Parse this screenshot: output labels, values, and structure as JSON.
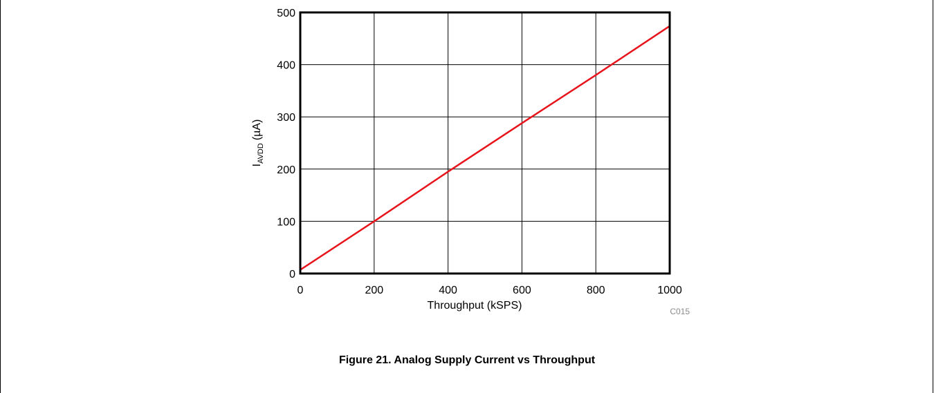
{
  "figure": {
    "caption": "Figure 21. Analog Supply Current vs Throughput"
  },
  "chart_data": {
    "type": "line",
    "xlabel": "Throughput (kSPS)",
    "ylabel_main": "I",
    "ylabel_sub": "AVDD",
    "ylabel_unit": "(µA)",
    "code": "C015",
    "xlim": [
      0,
      1000
    ],
    "ylim": [
      0,
      500
    ],
    "xticks": [
      0,
      200,
      400,
      600,
      800,
      1000
    ],
    "yticks": [
      0,
      100,
      200,
      300,
      400,
      500
    ],
    "grid": true,
    "colors": {
      "series": "#e8141b",
      "grid": "#000000",
      "frame": "#000000"
    },
    "series": [
      {
        "x": [
          0,
          200,
          400,
          600,
          800,
          1000
        ],
        "y": [
          7,
          100,
          195,
          288,
          380,
          474
        ]
      }
    ]
  }
}
